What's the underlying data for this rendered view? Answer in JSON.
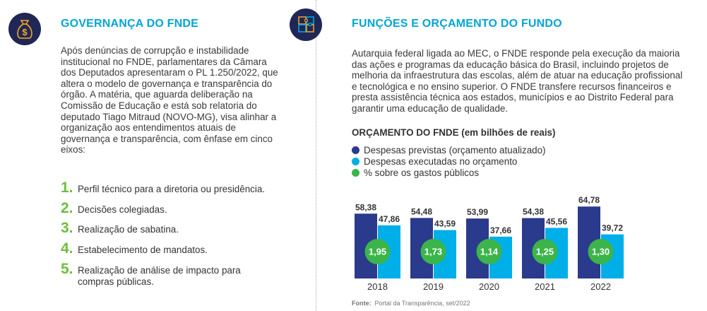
{
  "left": {
    "heading": "GOVERNANÇA DO FNDE",
    "icon": "money-bag-icon",
    "paragraph": "Após denúncias de corrupção e instabilidade institucional no FNDE, parlamentares da Câmara dos Deputados apresentaram o PL 1.250/2022, que altera o modelo de governança e transparência do órgão. A matéria, que aguarda deliberação na Comissão de Educação e está sob relatoria do deputado Tiago Mitraud (NOVO-MG), visa alinhar a organização aos entendimentos atuais de governança e transparência, com ênfase em cinco eixos:",
    "items": [
      {
        "num": "1.",
        "text": "Perfil técnico para a diretoria ou presidência."
      },
      {
        "num": "2.",
        "text": "Decisões colegiadas."
      },
      {
        "num": "3.",
        "text": "Realização de sabatina."
      },
      {
        "num": "4.",
        "text": "Estabelecimento de mandatos."
      },
      {
        "num": "5.",
        "text": "Realização de análise de impacto para compras públicas."
      }
    ]
  },
  "right": {
    "heading": "FUNÇÕES E ORÇAMENTO DO FUNDO",
    "icon": "puzzle-icon",
    "paragraph": "Autarquia federal ligada ao MEC, o FNDE responde pela execução da maioria das ações e programas da educação básica do Brasil, incluindo projetos de melhoria da infraestrutura das escolas, além de atuar na educação profissional e tecnológica e no ensino superior. O FNDE transfere recursos financeiros e presta assistência técnica aos estados, municípios e ao Distrito Federal para garantir uma educação de qualidade.",
    "source_label": "Fonte:",
    "source_text": "Portal da Transparência, set/2022"
  },
  "colors": {
    "heading": "#00a6d6",
    "navy": "#1f2756",
    "previstas": "#2a3a8c",
    "executadas": "#00aee8",
    "percent": "#3bb54a",
    "list_number": "#6bbf3a"
  },
  "chart_data": {
    "type": "bar",
    "title": "ORÇAMENTO DO FNDE (em bilhões de reais)",
    "categories": [
      "2018",
      "2019",
      "2020",
      "2021",
      "2022"
    ],
    "series": [
      {
        "name": "Despesas previstas (orçamento atualizado)",
        "values": [
          58.38,
          54.48,
          53.99,
          54.38,
          64.78
        ],
        "labels": [
          "58,38",
          "54,48",
          "53,99",
          "54,38",
          "64,78"
        ]
      },
      {
        "name": "Despesas executadas no orçamento",
        "values": [
          47.86,
          43.59,
          37.66,
          45.56,
          39.72
        ],
        "labels": [
          "47,86",
          "43,59",
          "37,66",
          "45,56",
          "39,72"
        ]
      },
      {
        "name": "% sobre os gastos públicos",
        "values": [
          1.95,
          1.73,
          1.14,
          1.25,
          1.3
        ],
        "labels": [
          "1,95",
          "1,73",
          "1,14",
          "1,25",
          "1,30"
        ]
      }
    ],
    "ylim": [
      0,
      70
    ],
    "legend": "top-left",
    "grid": false
  }
}
